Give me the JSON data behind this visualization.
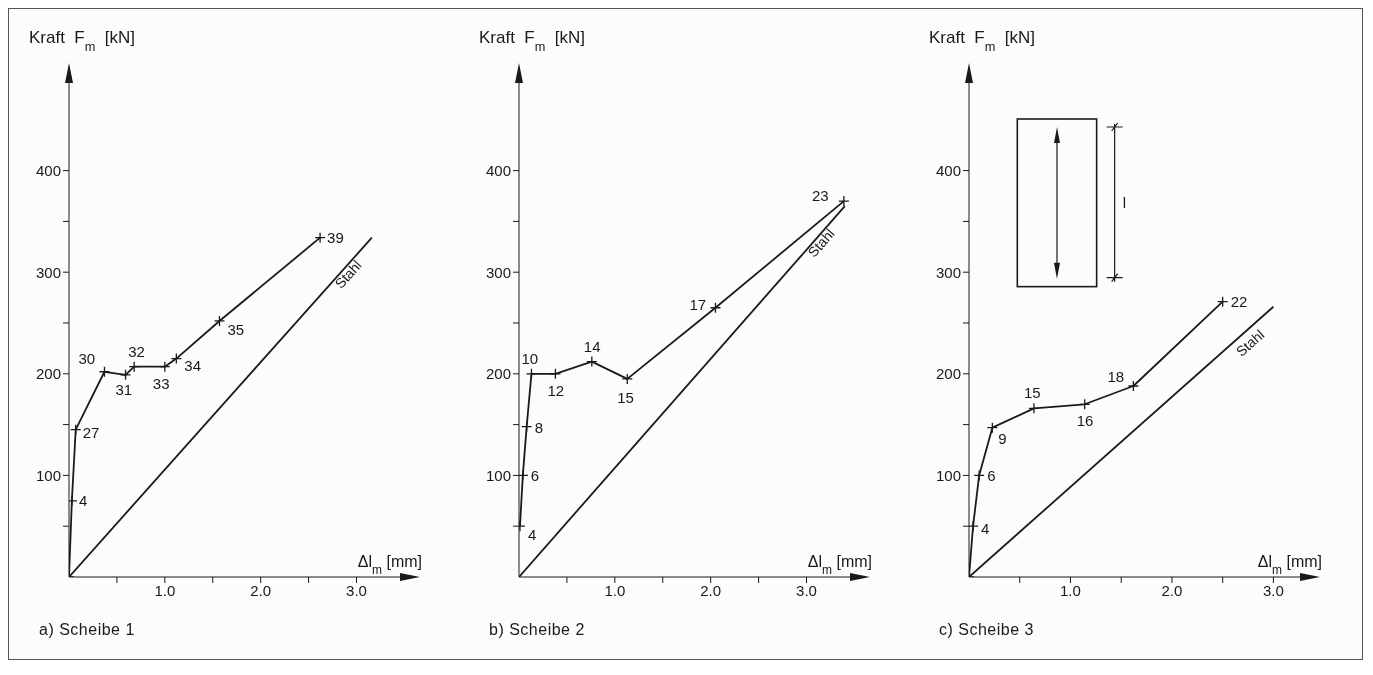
{
  "chart_data": [
    {
      "type": "line",
      "title": "a) Scheibe 1",
      "ylabel": "Kraft  F$_{m}$  [kN]",
      "xlabel": "Δl$_{m}$ [mm]",
      "xlim": [
        0,
        3.6
      ],
      "ylim": [
        0,
        500
      ],
      "xticks": [
        {
          "value": 0.5,
          "label": null
        },
        {
          "value": 1,
          "label": "1.0"
        },
        {
          "value": 1.5,
          "label": null
        },
        {
          "value": 2,
          "label": "2.0"
        },
        {
          "value": 2.5,
          "label": null
        },
        {
          "value": 3,
          "label": "3.0"
        }
      ],
      "yticks": [
        {
          "value": 50,
          "label": null
        },
        100,
        {
          "value": 150,
          "label": null
        },
        200,
        {
          "value": 250,
          "label": null
        },
        300,
        {
          "value": 350,
          "label": null
        },
        400
      ],
      "series": [
        {
          "color": "#1a1a1a",
          "marker": "cross",
          "x": [
            0,
            0.03,
            0.07,
            0.37,
            0.59,
            0.68,
            1.0,
            1.12,
            1.57,
            2.62
          ],
          "values": [
            0,
            75,
            145,
            202,
            199,
            207,
            207,
            215,
            252,
            334
          ]
        },
        {
          "name": "Stahl",
          "color": "#1a1a1a",
          "marker": "none",
          "x": [
            0,
            3.16
          ],
          "values": [
            0,
            334
          ]
        }
      ],
      "annotations": [
        {
          "text": "4",
          "x": 0.03,
          "y": 75
        },
        {
          "text": "27",
          "x": 0.07,
          "y": 145
        },
        {
          "text": "30",
          "x": 0.37,
          "y": 202
        },
        {
          "text": "31",
          "x": 0.59,
          "y": 199
        },
        {
          "text": "32",
          "x": 0.68,
          "y": 207
        },
        {
          "text": "33",
          "x": 1.0,
          "y": 207
        },
        {
          "text": "34",
          "x": 1.12,
          "y": 215
        },
        {
          "text": "35",
          "x": 1.57,
          "y": 252
        },
        {
          "text": "39",
          "x": 2.62,
          "y": 334
        }
      ]
    },
    {
      "type": "line",
      "title": "b) Scheibe 2",
      "ylabel": "Kraft  F$_{m}$  [kN]",
      "xlabel": "Δl$_{m}$ [mm]",
      "xlim": [
        0,
        3.6
      ],
      "ylim": [
        0,
        500
      ],
      "xticks": [
        {
          "value": 0.5,
          "label": null
        },
        {
          "value": 1,
          "label": "1.0"
        },
        {
          "value": 1.5,
          "label": null
        },
        {
          "value": 2,
          "label": "2.0"
        },
        {
          "value": 2.5,
          "label": null
        },
        {
          "value": 3,
          "label": "3.0"
        }
      ],
      "yticks": [
        {
          "value": 50,
          "label": null
        },
        100,
        {
          "value": 150,
          "label": null
        },
        200,
        {
          "value": 250,
          "label": null
        },
        300,
        {
          "value": 350,
          "label": null
        },
        400
      ],
      "series": [
        {
          "color": "#1a1a1a",
          "marker": "cross",
          "x": [
            0.01,
            0.04,
            0.08,
            0.13,
            0.38,
            0.76,
            1.13,
            2.05,
            3.39
          ],
          "values": [
            50,
            100,
            148,
            200,
            200,
            212,
            195,
            265,
            370
          ]
        },
        {
          "name": "Stahl",
          "color": "#1a1a1a",
          "marker": "none",
          "x": [
            0,
            3.4
          ],
          "values": [
            0,
            365
          ]
        }
      ],
      "annotations": [
        {
          "text": "4",
          "x": 0.01,
          "y": 50
        },
        {
          "text": "6",
          "x": 0.04,
          "y": 100
        },
        {
          "text": "8",
          "x": 0.08,
          "y": 148
        },
        {
          "text": "10",
          "x": 0.13,
          "y": 200
        },
        {
          "text": "12",
          "x": 0.38,
          "y": 200
        },
        {
          "text": "14",
          "x": 0.76,
          "y": 212
        },
        {
          "text": "15",
          "x": 1.13,
          "y": 195
        },
        {
          "text": "17",
          "x": 2.05,
          "y": 265
        },
        {
          "text": "23",
          "x": 3.39,
          "y": 370
        }
      ]
    },
    {
      "type": "line",
      "title": "c) Scheibe 3",
      "ylabel": "Kraft  F$_{m}$  [kN]",
      "xlabel": "Δl$_{m}$ [mm]",
      "xlim": [
        0,
        3.4
      ],
      "ylim": [
        0,
        500
      ],
      "xticks": [
        {
          "value": 0.5,
          "label": null
        },
        {
          "value": 1,
          "label": "1.0"
        },
        {
          "value": 1.5,
          "label": null
        },
        {
          "value": 2,
          "label": "2.0"
        },
        {
          "value": 2.5,
          "label": null
        },
        {
          "value": 3,
          "label": "3.0"
        }
      ],
      "yticks": [
        {
          "value": 50,
          "label": null
        },
        100,
        {
          "value": 150,
          "label": null
        },
        200,
        {
          "value": 250,
          "label": null
        },
        300,
        {
          "value": 350,
          "label": null
        },
        400
      ],
      "series": [
        {
          "color": "#1a1a1a",
          "marker": "cross",
          "x": [
            0,
            0.04,
            0.1,
            0.23,
            0.64,
            1.14,
            1.62,
            2.5
          ],
          "values": [
            0,
            50,
            100,
            147,
            166,
            170,
            188,
            271
          ]
        },
        {
          "name": "Stahl",
          "color": "#1a1a1a",
          "marker": "none",
          "x": [
            0,
            3.0
          ],
          "values": [
            0,
            266
          ]
        }
      ],
      "annotations": [
        {
          "text": "4",
          "x": 0.04,
          "y": 50
        },
        {
          "text": "6",
          "x": 0.1,
          "y": 100
        },
        {
          "text": "9",
          "x": 0.23,
          "y": 147
        },
        {
          "text": "15",
          "x": 0.64,
          "y": 166
        },
        {
          "text": "16",
          "x": 1.14,
          "y": 170
        },
        {
          "text": "18",
          "x": 1.62,
          "y": 188
        },
        {
          "text": "22",
          "x": 2.5,
          "y": 271
        },
        "l"
      ]
    }
  ]
}
